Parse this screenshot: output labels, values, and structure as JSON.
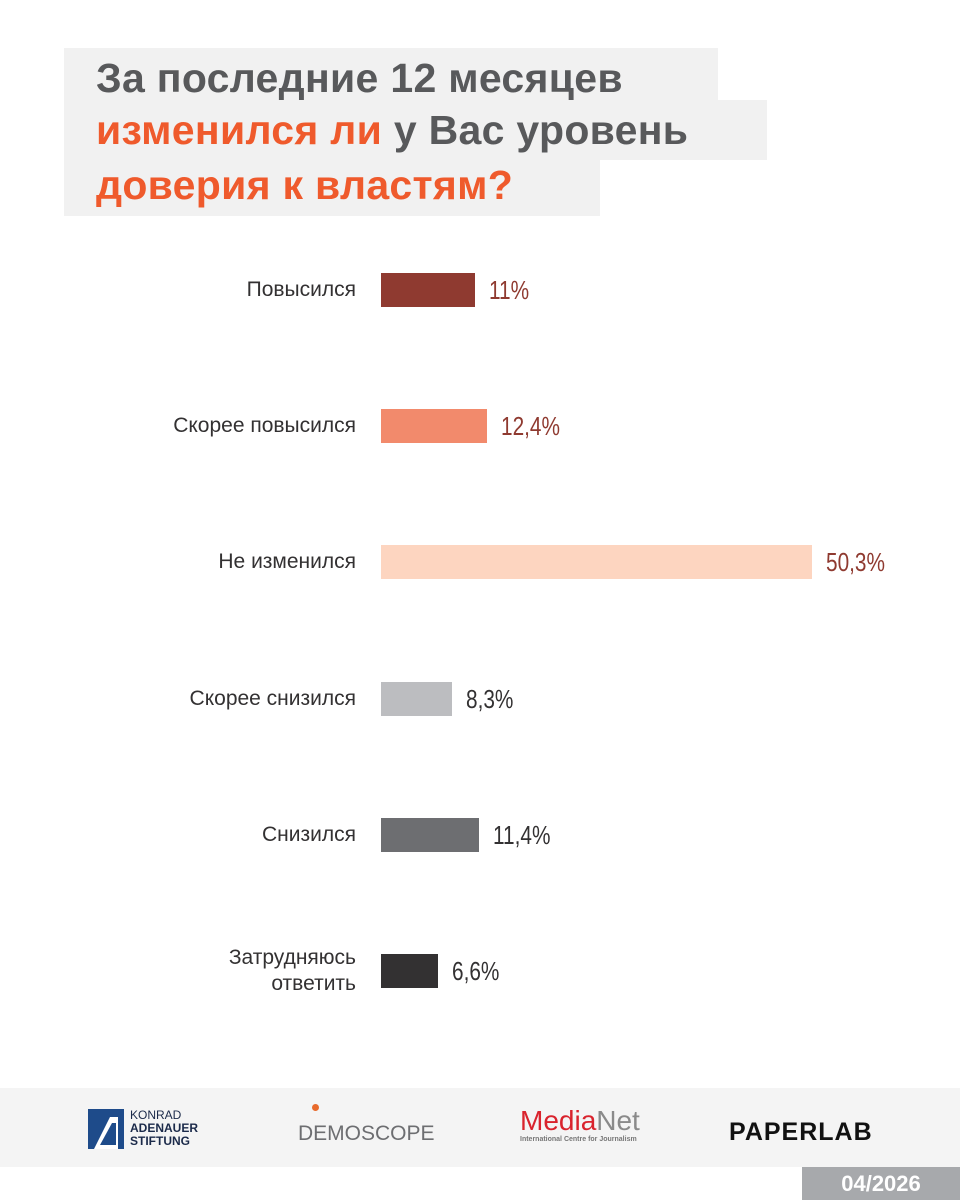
{
  "title": {
    "line1": "За последние 12 месяцев",
    "line2_highlight": "изменился ли",
    "line2_rest": " у Вас уровень",
    "line3": "доверия к властям?"
  },
  "chart_data": {
    "type": "bar",
    "orientation": "horizontal",
    "categories": [
      "Повысился",
      "Скорее повысился",
      "Не изменился",
      "Скорее снизился",
      "Снизился",
      "Затрудняюсь ответить"
    ],
    "values": [
      11,
      12.4,
      50.3,
      8.3,
      11.4,
      6.6
    ],
    "value_labels": [
      "11%",
      "12,4%",
      "50,3%",
      "8,3%",
      "11,4%",
      "6,6%"
    ],
    "colors": [
      "#8f3a30",
      "#f28a6c",
      "#fdd5c0",
      "#bcbdc0",
      "#6d6e71",
      "#333132"
    ],
    "label_colors": [
      "#8f3a30",
      "#8f3a30",
      "#8f3a30",
      "#333132",
      "#333132",
      "#333132"
    ],
    "xlim": [
      0,
      50.3
    ],
    "grid": false
  },
  "footer": {
    "logos": {
      "kas": [
        "KONRAD",
        "ADENAUER",
        "STIFTUNG"
      ],
      "demoscope": "DEMOSCOPE",
      "medianet_a": "Media",
      "medianet_b": "Net",
      "medianet_sub": "International Centre for Journalism",
      "paperlab": "PAPERLAB"
    },
    "date": "04/2026"
  }
}
